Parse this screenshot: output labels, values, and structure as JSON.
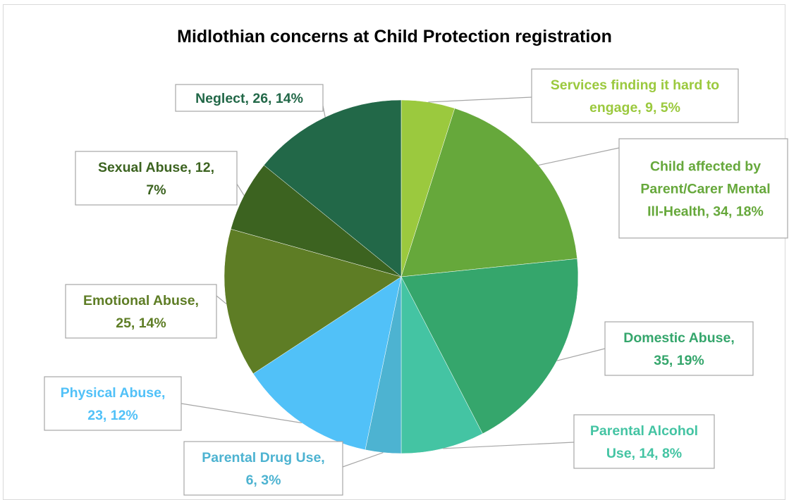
{
  "chart_data": {
    "type": "pie",
    "title": "Midlothian concerns at Child Protection registration",
    "slices": [
      {
        "name": "Services finding it hard to engage",
        "value": 9,
        "percent": "5%",
        "color": "#9bc93e",
        "label_lines": [
          "Services finding it hard to",
          "engage, 9, 5%"
        ]
      },
      {
        "name": "Child affected by Parent/Carer Mental Ill-Health",
        "value": 34,
        "percent": "18%",
        "color": "#66a83b",
        "label_lines": [
          "Child affected by",
          "Parent/Carer Mental",
          "Ill-Health, 34, 18%"
        ]
      },
      {
        "name": "Domestic Abuse",
        "value": 35,
        "percent": "19%",
        "color": "#35a66c",
        "label_lines": [
          "Domestic Abuse,",
          "35, 19%"
        ]
      },
      {
        "name": "Parental Alcohol Use",
        "value": 14,
        "percent": "8%",
        "color": "#44c4a3",
        "label_lines": [
          "Parental Alcohol",
          "Use, 14, 8%"
        ]
      },
      {
        "name": "Parental Drug Use",
        "value": 6,
        "percent": "3%",
        "color": "#4db3d1",
        "label_lines": [
          "Parental Drug Use,",
          "6, 3%"
        ]
      },
      {
        "name": "Physical Abuse",
        "value": 23,
        "percent": "12%",
        "color": "#51c1f8",
        "label_lines": [
          "Physical Abuse,",
          "23, 12%"
        ]
      },
      {
        "name": "Emotional Abuse",
        "value": 25,
        "percent": "14%",
        "color": "#5e7d25",
        "label_lines": [
          "Emotional Abuse,",
          "25, 14%"
        ]
      },
      {
        "name": "Sexual Abuse",
        "value": 12,
        "percent": "7%",
        "color": "#3c6320",
        "label_lines": [
          "Sexual Abuse, 12,",
          "7%"
        ]
      },
      {
        "name": "Neglect",
        "value": 26,
        "percent": "14%",
        "color": "#226848",
        "label_lines": [
          "Neglect, 26, 14%"
        ]
      }
    ],
    "start_angle_deg": 0,
    "direction": "clockwise"
  },
  "colors": {
    "label_text": {
      "Services finding it hard to engage": "#9bc93e",
      "Child affected by Parent/Carer Mental Ill-Health": "#66a83b",
      "Domestic Abuse": "#35a66c",
      "Parental Alcohol Use": "#44c4a3",
      "Parental Drug Use": "#4db3d1",
      "Physical Abuse": "#51c1f8",
      "Emotional Abuse": "#5e7d25",
      "Sexual Abuse": "#3c6320",
      "Neglect": "#226848"
    },
    "label_border": "#a6a6a6",
    "leader_line": "#a6a6a6"
  }
}
